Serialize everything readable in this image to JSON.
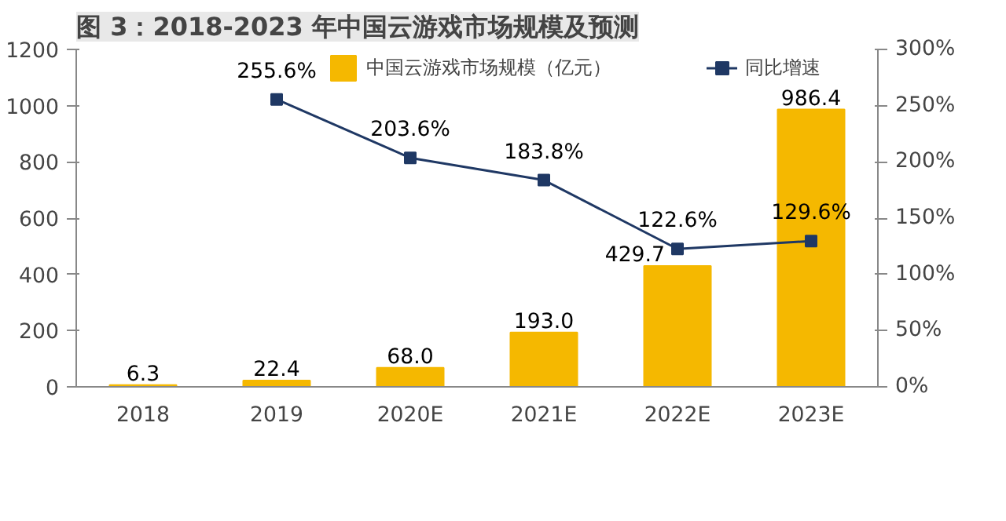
{
  "chart_data": {
    "type": "bar",
    "title": "图 3：2018-2023 年中国云游戏市场规模及预测",
    "categories": [
      "2018",
      "2019",
      "2020E",
      "2021E",
      "2022E",
      "2023E"
    ],
    "series": [
      {
        "name": "中国云游戏市场规模（亿元）",
        "color": "#f5b800",
        "values": [
          6.3,
          22.4,
          68.0,
          193.0,
          429.7,
          986.4
        ],
        "value_labels": [
          "6.3",
          "22.4",
          "68.0",
          "193.0",
          "429.7",
          "986.4"
        ]
      },
      {
        "name": "同比增速",
        "type": "line",
        "axis": "y2",
        "color": "#1f3864",
        "values": [
          null,
          255.6,
          203.6,
          183.8,
          122.6,
          129.6
        ],
        "value_labels": [
          null,
          "255.6%",
          "203.6%",
          "183.8%",
          "122.6%",
          "129.6%"
        ]
      }
    ],
    "ylim": [
      0,
      1200
    ],
    "yticks": [
      0,
      200,
      400,
      600,
      800,
      1000,
      1200
    ],
    "y2lim": [
      0,
      300
    ],
    "y2ticks": [
      {
        "value": 0,
        "label": "0%"
      },
      {
        "value": 50,
        "label": "50%"
      },
      {
        "value": 100,
        "label": "100%"
      },
      {
        "value": 150,
        "label": "150%"
      },
      {
        "value": 200,
        "label": "200%"
      },
      {
        "value": 250,
        "label": "250%"
      },
      {
        "value": 300,
        "label": "300%"
      }
    ],
    "legend": "top",
    "grid": false,
    "marker": "square",
    "line_style": "solid"
  }
}
